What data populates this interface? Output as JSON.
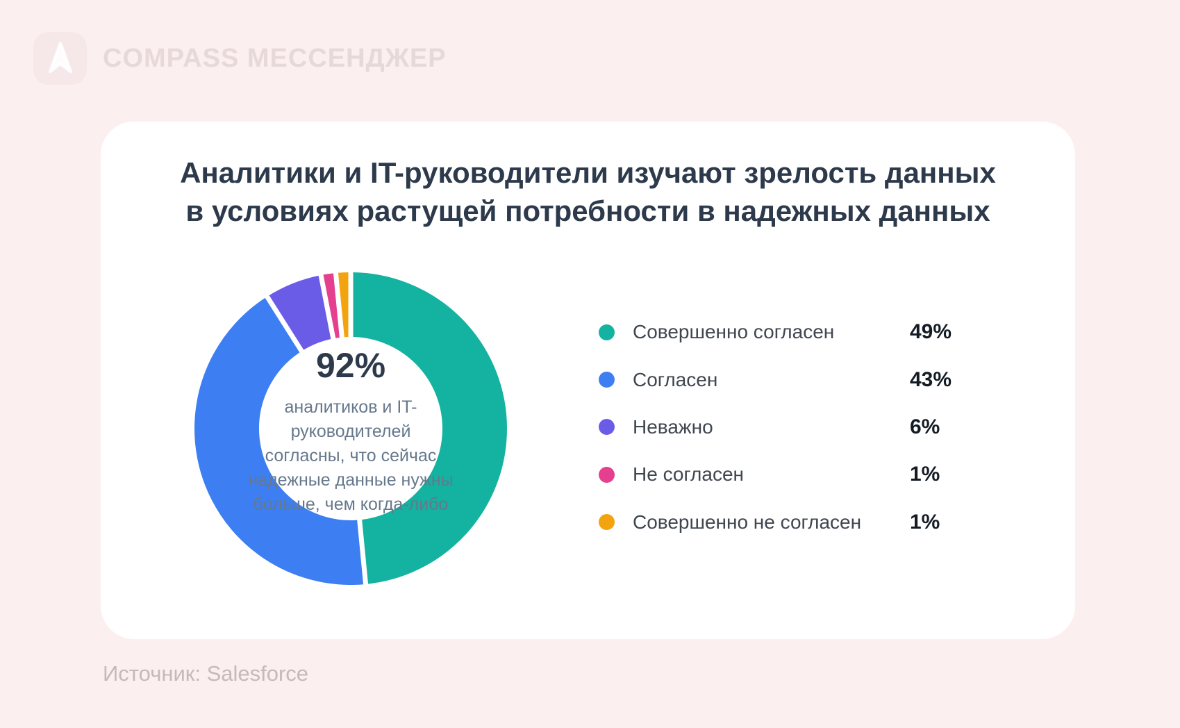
{
  "brand": {
    "name": "COMPASS МЕССЕНДЖЕР",
    "logo_icon": "navigation-arrow-icon"
  },
  "chart_data": {
    "type": "pie",
    "subtype": "donut",
    "title": "Аналитики и IT-руководители изучают зрелость данных\nв условиях растущей потребности в надежных данных",
    "categories": [
      "Совершенно согласен",
      "Согласен",
      "Неважно",
      "Не согласен",
      "Совершенно не согласен"
    ],
    "values": [
      49,
      43,
      6,
      1,
      1
    ],
    "unit": "%",
    "colors": [
      "#14B2A0",
      "#3D7FF2",
      "#6B5CE8",
      "#E4408F",
      "#F3A30D"
    ],
    "start_angle_deg": 0,
    "direction": "clockwise",
    "legend_position": "right",
    "center": {
      "value": "92%",
      "description": "аналитиков и IT-руководителей\nсогласны, что сейчас\nнадежные данные нужны\nбольше, чем когда-либо"
    }
  },
  "footer": {
    "source": "Источник: Salesforce"
  }
}
